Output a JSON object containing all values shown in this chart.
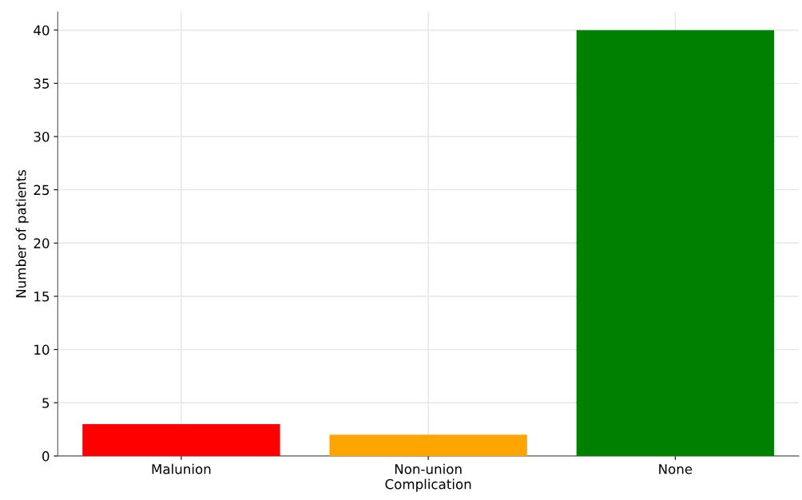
{
  "chart_data": {
    "type": "bar",
    "xlabel": "Complication",
    "ylabel": "Number of patients",
    "categories": [
      "Malunion",
      "Non-union",
      "None"
    ],
    "values": [
      3,
      2,
      40
    ],
    "colors": [
      "#ff0000",
      "#ffa500",
      "#008000"
    ],
    "ylim": [
      0,
      41.7
    ],
    "yticks": [
      0,
      5,
      10,
      15,
      20,
      25,
      30,
      35,
      40
    ],
    "grid": true
  }
}
